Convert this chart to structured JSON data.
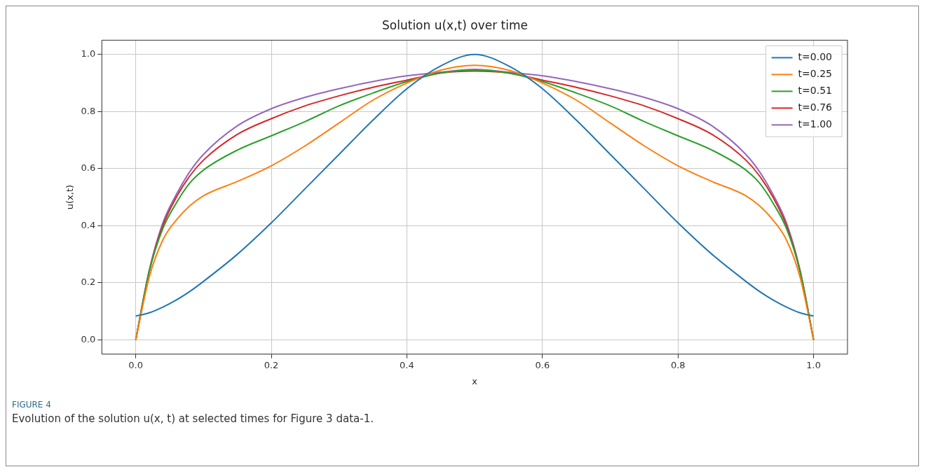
{
  "chart_data": {
    "type": "line",
    "title": "Solution u(x,t) over time",
    "xlabel": "x",
    "ylabel": "u(x,t)",
    "x": [
      0,
      0.02,
      0.04,
      0.06,
      0.08,
      0.1,
      0.15,
      0.2,
      0.25,
      0.3,
      0.35,
      0.4,
      0.45,
      0.5,
      0.55,
      0.6,
      0.65,
      0.7,
      0.75,
      0.8,
      0.85,
      0.9,
      0.92,
      0.94,
      0.96,
      0.98,
      1
    ],
    "series": [
      {
        "name": "t=0.00",
        "color": "#1f77b4",
        "values": [
          0.083,
          0.095,
          0.115,
          0.14,
          0.17,
          0.205,
          0.3,
          0.41,
          0.53,
          0.65,
          0.77,
          0.88,
          0.96,
          1.0,
          0.96,
          0.88,
          0.77,
          0.65,
          0.53,
          0.41,
          0.3,
          0.205,
          0.17,
          0.14,
          0.115,
          0.095,
          0.083
        ]
      },
      {
        "name": "t=0.25",
        "color": "#ff7f0e",
        "values": [
          0,
          0.22,
          0.35,
          0.42,
          0.47,
          0.505,
          0.555,
          0.61,
          0.68,
          0.76,
          0.84,
          0.9,
          0.945,
          0.962,
          0.945,
          0.9,
          0.84,
          0.76,
          0.68,
          0.61,
          0.555,
          0.505,
          0.47,
          0.42,
          0.35,
          0.22,
          0
        ]
      },
      {
        "name": "t=0.51",
        "color": "#2ca02c",
        "values": [
          0,
          0.24,
          0.39,
          0.48,
          0.55,
          0.595,
          0.665,
          0.715,
          0.765,
          0.82,
          0.865,
          0.905,
          0.935,
          0.945,
          0.935,
          0.905,
          0.865,
          0.82,
          0.765,
          0.715,
          0.665,
          0.595,
          0.55,
          0.48,
          0.39,
          0.24,
          0
        ]
      },
      {
        "name": "t=0.76",
        "color": "#d62728",
        "values": [
          0,
          0.24,
          0.4,
          0.5,
          0.575,
          0.63,
          0.72,
          0.775,
          0.82,
          0.855,
          0.885,
          0.91,
          0.935,
          0.942,
          0.935,
          0.91,
          0.885,
          0.855,
          0.82,
          0.775,
          0.72,
          0.63,
          0.575,
          0.5,
          0.4,
          0.24,
          0
        ]
      },
      {
        "name": "t=1.00",
        "color": "#9467bd",
        "values": [
          0,
          0.245,
          0.41,
          0.51,
          0.59,
          0.65,
          0.75,
          0.81,
          0.85,
          0.88,
          0.905,
          0.925,
          0.938,
          0.948,
          0.938,
          0.925,
          0.905,
          0.88,
          0.85,
          0.81,
          0.75,
          0.65,
          0.59,
          0.51,
          0.41,
          0.245,
          0
        ]
      }
    ],
    "xlim": [
      -0.05,
      1.05
    ],
    "ylim": [
      -0.05,
      1.05
    ],
    "xticks": [
      {
        "value": 0,
        "label": "0.0"
      },
      0.2,
      0.4,
      0.6,
      0.8,
      {
        "value": 1,
        "label": "1.0"
      }
    ],
    "yticks": [
      {
        "value": 0,
        "label": "0.0"
      },
      0.2,
      0.4,
      0.6,
      0.8,
      {
        "value": 1,
        "label": "1.0"
      }
    ],
    "grid": true,
    "legend": "top right",
    "annotations": [
      "FIGURE 4",
      "Evolution of the solution u(x, t) at selected times for Figure 3 data-1."
    ]
  }
}
